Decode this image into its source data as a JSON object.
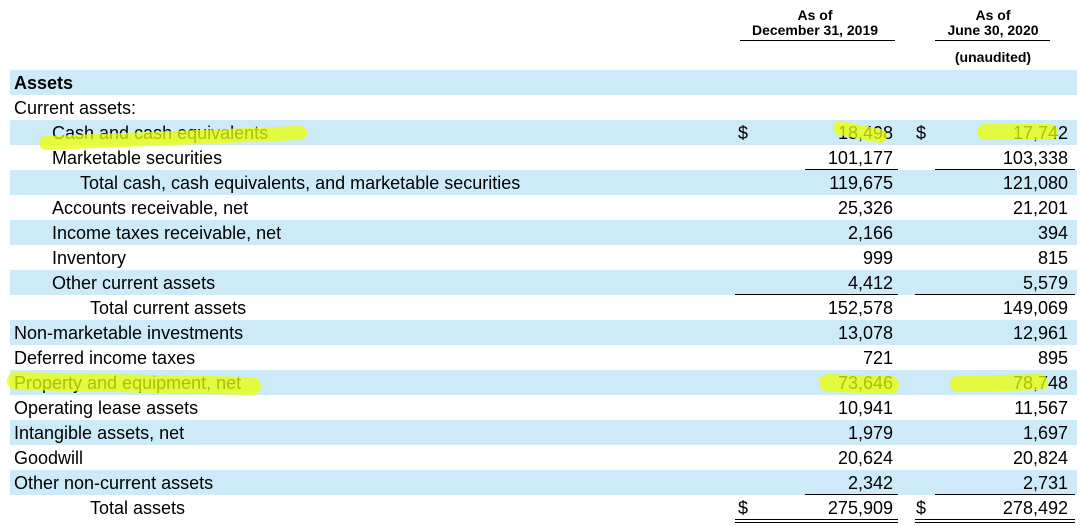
{
  "header": {
    "col1": [
      "As of",
      "December 31, 2019"
    ],
    "col2": [
      "As of",
      "June 30, 2020"
    ],
    "col2_note": "(unaudited)"
  },
  "table": {
    "rows": [
      {
        "label": "Assets"
      },
      {
        "label": "Current assets:"
      },
      {
        "label": "Cash and cash equivalents",
        "currency": "$",
        "values": [
          "18,498",
          "17,742"
        ]
      },
      {
        "label": "Marketable securities",
        "values": [
          "101,177",
          "103,338"
        ]
      },
      {
        "label": "Total cash, cash equivalents, and marketable securities",
        "values": [
          "119,675",
          "121,080"
        ]
      },
      {
        "label": "Accounts receivable, net",
        "values": [
          "25,326",
          "21,201"
        ]
      },
      {
        "label": "Income taxes receivable, net",
        "values": [
          "2,166",
          "394"
        ]
      },
      {
        "label": "Inventory",
        "values": [
          "999",
          "815"
        ]
      },
      {
        "label": "Other current assets",
        "values": [
          "4,412",
          "5,579"
        ]
      },
      {
        "label": "Total current assets",
        "values": [
          "152,578",
          "149,069"
        ]
      },
      {
        "label": "Non-marketable investments",
        "values": [
          "13,078",
          "12,961"
        ]
      },
      {
        "label": "Deferred income taxes",
        "values": [
          "721",
          "895"
        ]
      },
      {
        "label": "Property and equipment, net",
        "values": [
          "73,646",
          "78,748"
        ]
      },
      {
        "label": "Operating lease assets",
        "values": [
          "10,941",
          "11,567"
        ]
      },
      {
        "label": "Intangible assets, net",
        "values": [
          "1,979",
          "1,697"
        ]
      },
      {
        "label": "Goodwill",
        "values": [
          "20,624",
          "20,824"
        ]
      },
      {
        "label": "Other non-current assets",
        "values": [
          "2,342",
          "2,731"
        ]
      },
      {
        "label": "Total assets",
        "currency": "$",
        "values": [
          "275,909",
          "278,492"
        ]
      }
    ]
  }
}
